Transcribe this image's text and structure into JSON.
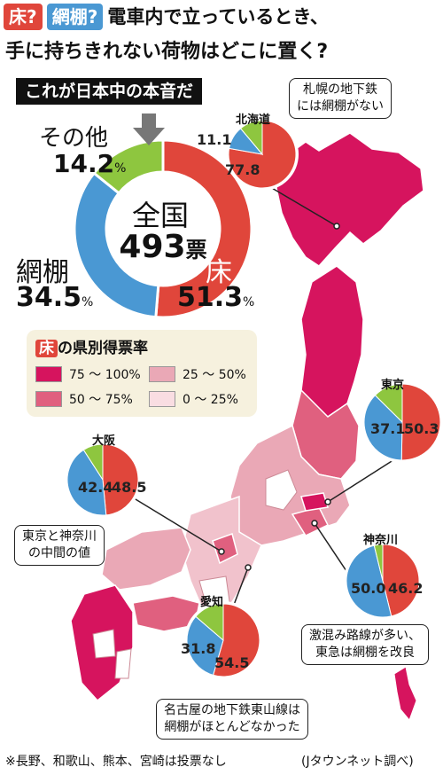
{
  "title": {
    "tag_floor": "床?",
    "tag_rack": "網棚?",
    "line1_rest": "電車内で立っているとき、",
    "line2": "手に持ちきれない荷物はどこに置く?"
  },
  "subtitle": "これが日本中の本音だ",
  "main_donut": {
    "center_label": "全国",
    "center_value": "493",
    "center_unit": "票",
    "other_label": "その他",
    "other_value": "14.2",
    "rack_label": "網棚",
    "rack_value": "34.5",
    "floor_label": "床",
    "floor_value": "51.3",
    "pct_sign": "%"
  },
  "legend": {
    "title_tag": "床",
    "title_rest": "の県別得票率",
    "items": [
      {
        "label": "75 〜 100%",
        "color": "#d6145e"
      },
      {
        "label": "25 〜  50%",
        "color": "#eaa8b6"
      },
      {
        "label": "50 〜  75%",
        "color": "#e0607f"
      },
      {
        "label": "0 〜  25%",
        "color": "#f9dde2"
      }
    ]
  },
  "regions": {
    "hokkaido": {
      "name": "北海道",
      "rack": "11.1",
      "floor": "77.8",
      "callout": [
        "札幌の地下鉄",
        "には網棚がない"
      ]
    },
    "tokyo": {
      "name": "東京",
      "rack": "37.1",
      "floor": "50.3"
    },
    "osaka": {
      "name": "大阪",
      "rack": "42.4",
      "floor": "48.5",
      "callout": [
        "東京と神奈川",
        "の中間の値"
      ]
    },
    "kanagawa": {
      "name": "神奈川",
      "rack": "50.0",
      "floor": "46.2",
      "callout": [
        "激混み路線が多い、",
        "東急は網棚を改良"
      ]
    },
    "aichi": {
      "name": "愛知",
      "rack": "31.8",
      "floor": "54.5",
      "callout": [
        "名古屋の地下鉄東山線は",
        "網棚がほとんどなかった"
      ]
    }
  },
  "footnote": "※長野、和歌山、熊本、宮崎は投票なし",
  "source": "(Jタウンネット調べ)",
  "colors": {
    "floor": "#e0463b",
    "rack": "#4a98d3",
    "other": "#8ec63f",
    "tag_floor": "#e0463b",
    "tag_rack": "#4a98d3"
  },
  "chart_data": [
    {
      "type": "pie",
      "name": "全国",
      "categories": [
        "床",
        "網棚",
        "その他"
      ],
      "values": [
        51.3,
        34.5,
        14.2
      ],
      "total_votes": 493
    },
    {
      "type": "pie",
      "name": "北海道",
      "categories": [
        "床",
        "網棚",
        "その他"
      ],
      "values": [
        77.8,
        11.1,
        11.1
      ]
    },
    {
      "type": "pie",
      "name": "東京",
      "categories": [
        "床",
        "網棚",
        "その他"
      ],
      "values": [
        50.3,
        37.1,
        12.6
      ]
    },
    {
      "type": "pie",
      "name": "大阪",
      "categories": [
        "床",
        "網棚",
        "その他"
      ],
      "values": [
        48.5,
        42.4,
        9.1
      ]
    },
    {
      "type": "pie",
      "name": "神奈川",
      "categories": [
        "床",
        "網棚",
        "その他"
      ],
      "values": [
        46.2,
        50.0,
        3.8
      ]
    },
    {
      "type": "pie",
      "name": "愛知",
      "categories": [
        "床",
        "網棚",
        "その他"
      ],
      "values": [
        54.5,
        31.8,
        13.7
      ]
    }
  ]
}
